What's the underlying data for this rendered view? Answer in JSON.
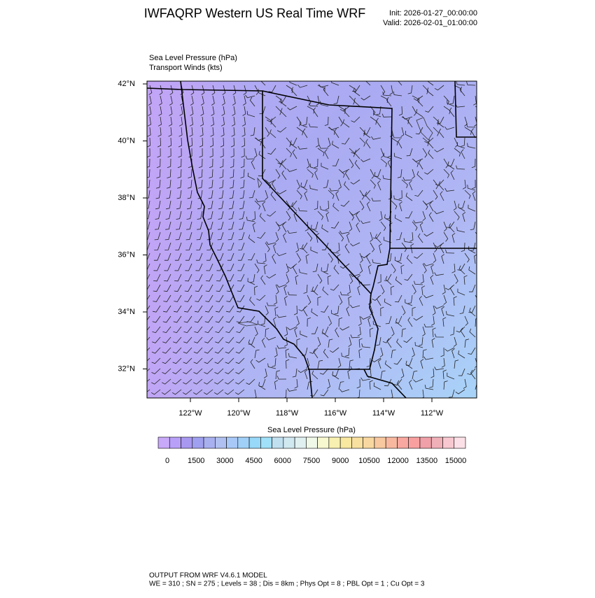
{
  "header": {
    "title": "IWFAQRP Western US Real Time WRF",
    "init": "Init: 2026-01-27_00:00:00",
    "valid": "Valid: 2026-02-01_01:00:00"
  },
  "fields": [
    "Sea Level Pressure   (hPa)",
    "Transport Winds   (kts)"
  ],
  "map": {
    "lat_ticks": [
      {
        "value": 42,
        "label": "42°N"
      },
      {
        "value": 40,
        "label": "40°N"
      },
      {
        "value": 38,
        "label": "38°N"
      },
      {
        "value": 36,
        "label": "36°N"
      },
      {
        "value": 34,
        "label": "34°N"
      },
      {
        "value": 32,
        "label": "32°N"
      }
    ],
    "lon_ticks": [
      {
        "value": -122,
        "label": "122°W"
      },
      {
        "value": -120,
        "label": "120°W"
      },
      {
        "value": -118,
        "label": "118°W"
      },
      {
        "value": -116,
        "label": "116°W"
      },
      {
        "value": -114,
        "label": "114°W"
      },
      {
        "value": -112,
        "label": "112°W"
      }
    ]
  },
  "colorbar": {
    "title": "Sea Level Pressure  (hPa)",
    "colors": [
      "#c8a8f8",
      "#b8a0f8",
      "#a898f0",
      "#a0a0f0",
      "#a8b0f0",
      "#b0c0f0",
      "#a8c8f8",
      "#a0d0f8",
      "#98d8f8",
      "#a0e0f8",
      "#c0e0f0",
      "#d0e8f0",
      "#e0f0f0",
      "#f0f8e8",
      "#f8f8d0",
      "#f8f0b0",
      "#f8e8a0",
      "#f8e0a0",
      "#f8d8a0",
      "#f8c8a0",
      "#f8b8a0",
      "#f8a8a0",
      "#f8a0a0",
      "#f0a0a8",
      "#f0b0b8",
      "#f8c8d0",
      "#fce0e8"
    ],
    "labels": [
      0,
      1500,
      3000,
      4500,
      6000,
      7500,
      9000,
      10500,
      12000,
      13500,
      15000
    ]
  },
  "footer": [
    "OUTPUT FROM WRF V4.6.1 MODEL",
    "WE = 310 ; SN = 275 ; Levels = 38 ; Dis = 8km ; Phys Opt = 8 ; PBL Opt = 1 ; Cu Opt = 3"
  ]
}
